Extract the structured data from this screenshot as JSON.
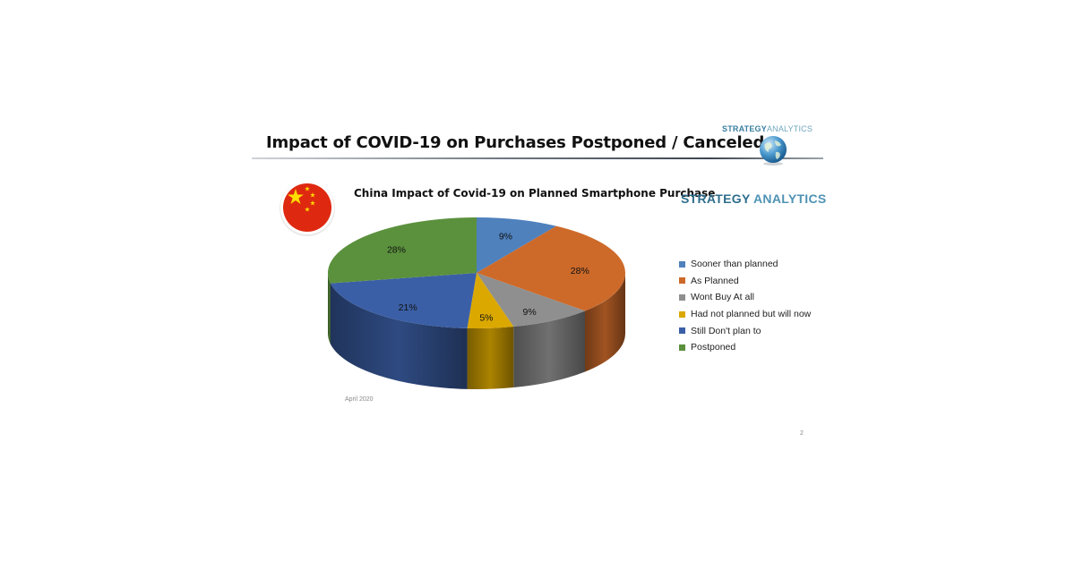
{
  "slide": {
    "title": "Impact of COVID-19  on Purchases Postponed / Canceled",
    "brand_top_bold": "STRATEGY",
    "brand_top_light": "ANALYTICS",
    "brand_mid_a": "STRATEGY",
    "brand_mid_b": "ANALYTICS",
    "footnote": "April 2020",
    "page_number": "2"
  },
  "chart_data": {
    "type": "pie",
    "title": "China Impact of Covid-19  on Planned Smartphone Purchase",
    "categories": [
      "Sooner than planned",
      "As Planned",
      "Wont Buy At all",
      "Had not planned but will now",
      "Still Don't plan to",
      "Postponed"
    ],
    "values": [
      9,
      28,
      9,
      5,
      21,
      28
    ],
    "labels": [
      "9%",
      "28%",
      "9%",
      "5%",
      "21%",
      "28%"
    ],
    "colors": [
      "#4f81bd",
      "#cd6a2a",
      "#8f8f8f",
      "#dba800",
      "#3b5fa6",
      "#5b913d"
    ],
    "legend_position": "right",
    "style": "3d"
  },
  "icons": {
    "flag": "china-flag-icon",
    "globe": "globe-icon"
  }
}
